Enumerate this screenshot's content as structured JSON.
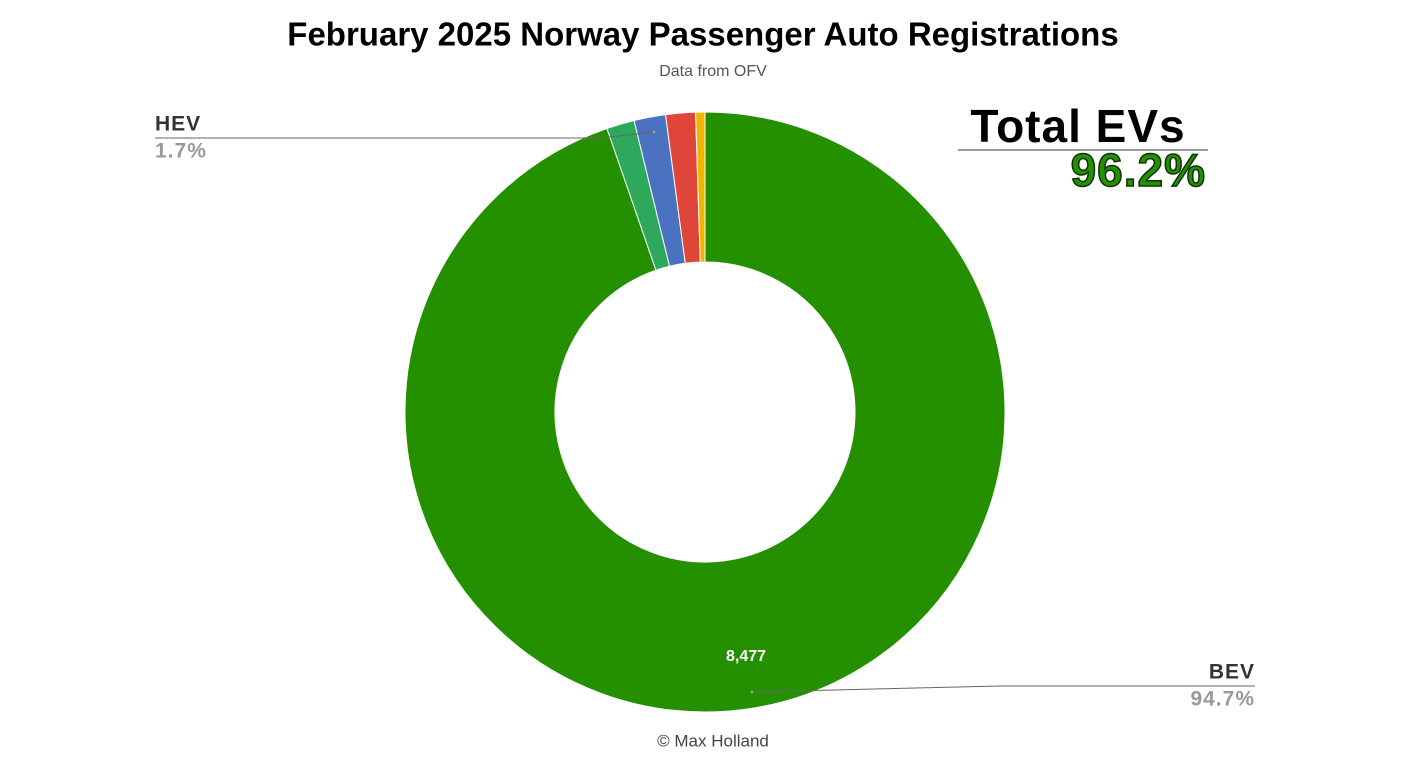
{
  "chart_data": {
    "type": "donut",
    "title": "February 2025 Norway Passenger Auto Registrations",
    "subtitle": "Data from OFV",
    "footer": "© Max Holland",
    "annotation": {
      "title": "Total EVs",
      "value": 96.2,
      "label": "96.2%"
    },
    "categories": [
      "BEV",
      null,
      "HEV",
      null,
      null
    ],
    "values": [
      94.7,
      1.5,
      1.7,
      1.6,
      0.5
    ],
    "value_labels": [
      "94.7%",
      null,
      "1.7%",
      null,
      null
    ],
    "counts": [
      8477,
      null,
      null,
      null,
      null
    ],
    "count_labels": [
      "8,477",
      null,
      null,
      null,
      null
    ],
    "colors": [
      "#249000",
      "#2ea85c",
      "#4a72c0",
      "#e0453a",
      "#f2b600"
    ]
  }
}
